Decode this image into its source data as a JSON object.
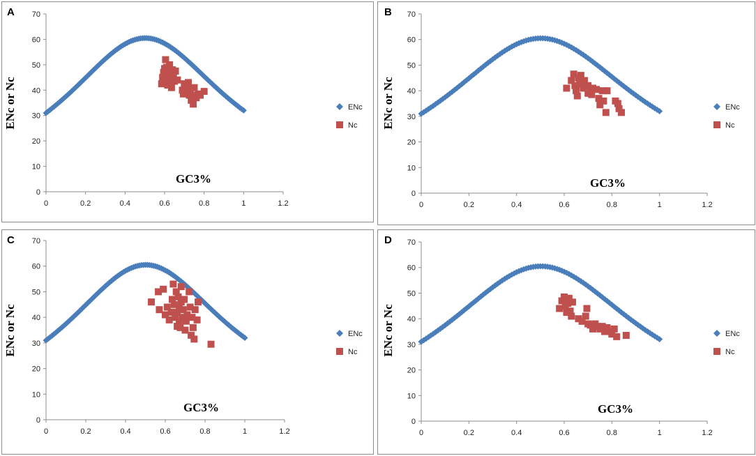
{
  "colors": {
    "enc": "#4a7ebb",
    "nc": "#c0504d",
    "frame": "#8c8c8c"
  },
  "chart_data": [
    {
      "panel": "A",
      "type": "scatter",
      "xlabel": "GC3%",
      "ylabel": "ENc or Nc",
      "xlim": [
        0,
        1.2
      ],
      "ylim": [
        0,
        70
      ],
      "x_ticks": [
        "0",
        "0.2",
        "0.4",
        "0.6",
        "0.8",
        "1",
        "1.2"
      ],
      "y_ticks": [
        "0",
        "10",
        "20",
        "30",
        "40",
        "50",
        "60",
        "70"
      ],
      "legend": [
        "ENc",
        "Nc"
      ],
      "series": [
        {
          "name": "ENc",
          "marker": "diamond",
          "curve": "expected_enc",
          "x_range": [
            0,
            1
          ]
        },
        {
          "name": "Nc",
          "marker": "square",
          "points": [
            [
              0.585,
              42.5
            ],
            [
              0.59,
              45
            ],
            [
              0.595,
              47
            ],
            [
              0.6,
              44
            ],
            [
              0.6,
              48.5
            ],
            [
              0.605,
              52
            ],
            [
              0.61,
              49
            ],
            [
              0.61,
              45.5
            ],
            [
              0.615,
              42
            ],
            [
              0.62,
              47
            ],
            [
              0.625,
              50
            ],
            [
              0.63,
              44
            ],
            [
              0.635,
              41
            ],
            [
              0.64,
              48
            ],
            [
              0.645,
              46
            ],
            [
              0.65,
              43.5
            ],
            [
              0.655,
              47.5
            ],
            [
              0.665,
              44
            ],
            [
              0.69,
              40
            ],
            [
              0.7,
              42.5
            ],
            [
              0.71,
              39
            ],
            [
              0.715,
              41
            ],
            [
              0.72,
              43
            ],
            [
              0.725,
              38
            ],
            [
              0.73,
              40.5
            ],
            [
              0.735,
              36
            ],
            [
              0.74,
              38
            ],
            [
              0.745,
              34.5
            ],
            [
              0.75,
              41
            ],
            [
              0.76,
              37
            ],
            [
              0.77,
              38.5
            ],
            [
              0.78,
              38
            ],
            [
              0.8,
              39.5
            ],
            [
              0.705,
              41.5
            ],
            [
              0.695,
              38.5
            ]
          ]
        }
      ]
    },
    {
      "panel": "B",
      "type": "scatter",
      "xlabel": "GC3%",
      "ylabel": "ENc or Nc",
      "xlim": [
        0,
        1.2
      ],
      "ylim": [
        0,
        70
      ],
      "x_ticks": [
        "0",
        "0.2",
        "0.4",
        "0.6",
        "0.8",
        "1",
        "1.2"
      ],
      "y_ticks": [
        "0",
        "10",
        "20",
        "30",
        "40",
        "50",
        "60",
        "70"
      ],
      "legend": [
        "ENc",
        "Nc"
      ],
      "series": [
        {
          "name": "ENc",
          "marker": "diamond",
          "curve": "expected_enc",
          "x_range": [
            0,
            1
          ]
        },
        {
          "name": "Nc",
          "marker": "square",
          "points": [
            [
              0.61,
              41
            ],
            [
              0.63,
              44
            ],
            [
              0.64,
              46.5
            ],
            [
              0.645,
              42
            ],
            [
              0.65,
              40
            ],
            [
              0.655,
              38
            ],
            [
              0.66,
              45
            ],
            [
              0.665,
              42.5
            ],
            [
              0.67,
              46
            ],
            [
              0.675,
              43
            ],
            [
              0.68,
              41
            ],
            [
              0.685,
              44
            ],
            [
              0.7,
              42
            ],
            [
              0.71,
              40
            ],
            [
              0.715,
              38.5
            ],
            [
              0.72,
              41
            ],
            [
              0.735,
              40.5
            ],
            [
              0.745,
              37
            ],
            [
              0.75,
              34.5
            ],
            [
              0.76,
              40
            ],
            [
              0.765,
              36
            ],
            [
              0.775,
              31.5
            ],
            [
              0.78,
              40
            ],
            [
              0.815,
              36
            ],
            [
              0.825,
              35
            ],
            [
              0.83,
              33
            ],
            [
              0.84,
              31.5
            ],
            [
              0.7,
              39
            ]
          ]
        }
      ]
    },
    {
      "panel": "C",
      "type": "scatter",
      "xlabel": "GC3%",
      "ylabel": "ENc or Nc",
      "xlim": [
        0,
        1.2
      ],
      "ylim": [
        0,
        70
      ],
      "x_ticks": [
        "0",
        "0.2",
        "0.4",
        "0.6",
        "0.8",
        "1",
        "1.2"
      ],
      "y_ticks": [
        "0",
        "10",
        "20",
        "30",
        "40",
        "50",
        "60",
        "70"
      ],
      "legend": [
        "ENc",
        "Nc"
      ],
      "series": [
        {
          "name": "ENc",
          "marker": "diamond",
          "curve": "expected_enc",
          "x_range": [
            0,
            1
          ]
        },
        {
          "name": "Nc",
          "marker": "square",
          "points": [
            [
              0.53,
              46
            ],
            [
              0.565,
              50
            ],
            [
              0.57,
              43
            ],
            [
              0.59,
              51
            ],
            [
              0.6,
              41
            ],
            [
              0.61,
              44
            ],
            [
              0.62,
              39
            ],
            [
              0.63,
              42
            ],
            [
              0.635,
              47
            ],
            [
              0.64,
              53
            ],
            [
              0.645,
              45
            ],
            [
              0.65,
              40
            ],
            [
              0.655,
              50
            ],
            [
              0.66,
              42
            ],
            [
              0.665,
              48
            ],
            [
              0.67,
              38
            ],
            [
              0.67,
              44
            ],
            [
              0.675,
              36
            ],
            [
              0.68,
              46
            ],
            [
              0.685,
              40
            ],
            [
              0.69,
              43
            ],
            [
              0.695,
              47
            ],
            [
              0.7,
              35
            ],
            [
              0.705,
              38.5
            ],
            [
              0.71,
              41
            ],
            [
              0.72,
              50
            ],
            [
              0.725,
              44
            ],
            [
              0.73,
              33
            ],
            [
              0.735,
              40
            ],
            [
              0.74,
              36
            ],
            [
              0.745,
              31.5
            ],
            [
              0.75,
              43
            ],
            [
              0.76,
              39
            ],
            [
              0.765,
              46
            ],
            [
              0.83,
              29.5
            ],
            [
              0.66,
              36.5
            ],
            [
              0.68,
              52
            ]
          ]
        }
      ]
    },
    {
      "panel": "D",
      "type": "scatter",
      "xlabel": "GC3%",
      "ylabel": "ENc or Nc",
      "xlim": [
        0,
        1.2
      ],
      "ylim": [
        0,
        70
      ],
      "x_ticks": [
        "0",
        "0.2",
        "0.4",
        "0.6",
        "0.8",
        "1",
        "1.2"
      ],
      "y_ticks": [
        "0",
        "10",
        "20",
        "30",
        "40",
        "50",
        "60",
        "70"
      ],
      "legend": [
        "ENc",
        "Nc"
      ],
      "series": [
        {
          "name": "ENc",
          "marker": "diamond",
          "curve": "expected_enc",
          "x_range": [
            0,
            1
          ]
        },
        {
          "name": "Nc",
          "marker": "square",
          "points": [
            [
              0.58,
              44
            ],
            [
              0.59,
              47
            ],
            [
              0.6,
              48.5
            ],
            [
              0.605,
              45
            ],
            [
              0.61,
              42.5
            ],
            [
              0.615,
              46
            ],
            [
              0.62,
              48
            ],
            [
              0.625,
              43
            ],
            [
              0.63,
              41
            ],
            [
              0.635,
              46.5
            ],
            [
              0.66,
              40
            ],
            [
              0.675,
              39
            ],
            [
              0.69,
              41
            ],
            [
              0.695,
              44
            ],
            [
              0.7,
              38
            ],
            [
              0.71,
              37.5
            ],
            [
              0.72,
              36
            ],
            [
              0.73,
              38
            ],
            [
              0.74,
              37
            ],
            [
              0.75,
              36
            ],
            [
              0.76,
              37
            ],
            [
              0.77,
              35
            ],
            [
              0.78,
              36.5
            ],
            [
              0.79,
              35
            ],
            [
              0.8,
              34
            ],
            [
              0.81,
              36
            ],
            [
              0.82,
              33
            ],
            [
              0.86,
              33.5
            ]
          ]
        }
      ]
    }
  ]
}
